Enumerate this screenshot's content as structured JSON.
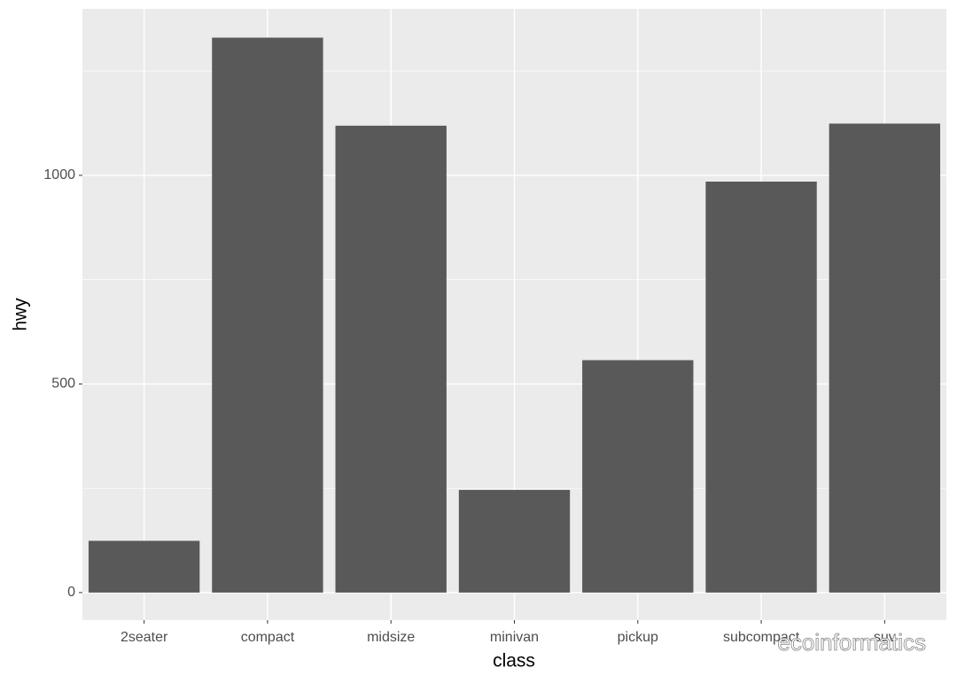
{
  "chart_data": {
    "type": "bar",
    "x_label": "class",
    "y_label": "hwy",
    "categories": [
      "2seater",
      "compact",
      "midsize",
      "minivan",
      "pickup",
      "subcompact",
      "suv"
    ],
    "values": [
      124,
      1330,
      1119,
      246,
      557,
      985,
      1124
    ],
    "color": "#595959",
    "ylim": [
      -66,
      1399
    ],
    "yticks": [
      0,
      500,
      1000
    ],
    "minor_grid": [
      250,
      750,
      1250
    ],
    "grid": true
  },
  "watermark": "ecoinformatics"
}
